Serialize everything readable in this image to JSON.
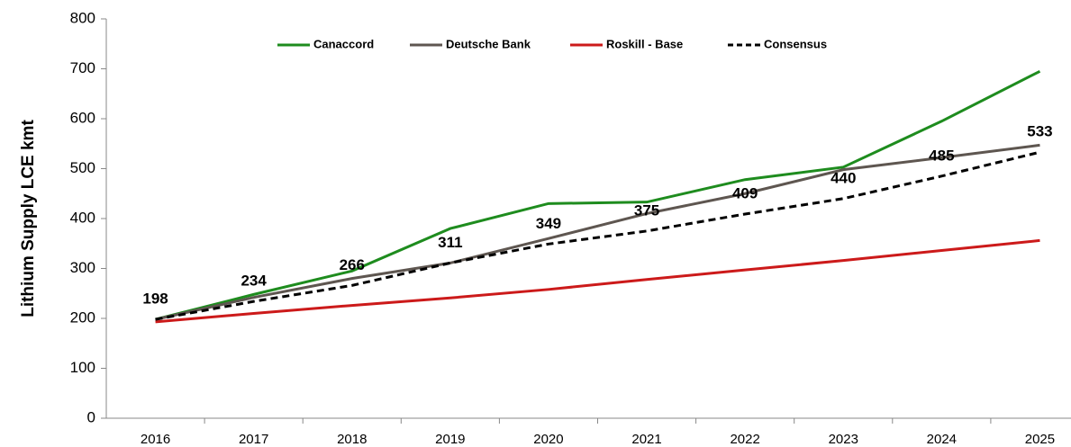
{
  "chart_data": {
    "type": "line",
    "y_label": "Lithium Supply LCE kmt",
    "categories": [
      "2016",
      "2017",
      "2018",
      "2019",
      "2020",
      "2021",
      "2022",
      "2023",
      "2024",
      "2025"
    ],
    "series": [
      {
        "name": "Canaccord",
        "color": "#1e8c1e",
        "values": [
          198,
          248,
          295,
          380,
          430,
          433,
          478,
          503,
          595,
          695
        ]
      },
      {
        "name": "Deutsche Bank",
        "color": "#5e5650",
        "values": [
          198,
          242,
          280,
          311,
          360,
          410,
          450,
          498,
          522,
          547
        ]
      },
      {
        "name": "Roskill - Base",
        "color": "#cc1a1a",
        "values": [
          193,
          210,
          226,
          241,
          258,
          278,
          297,
          316,
          336,
          356
        ]
      },
      {
        "name": "Consensus",
        "color": "#000000",
        "dashed": true,
        "data_labels": true,
        "values": [
          198,
          234,
          266,
          311,
          349,
          375,
          409,
          440,
          485,
          533
        ]
      }
    ],
    "ylim": [
      0,
      800
    ],
    "yticks": [
      0,
      100,
      200,
      300,
      400,
      500,
      600,
      700,
      800
    ],
    "grid": false,
    "legend": "top"
  }
}
